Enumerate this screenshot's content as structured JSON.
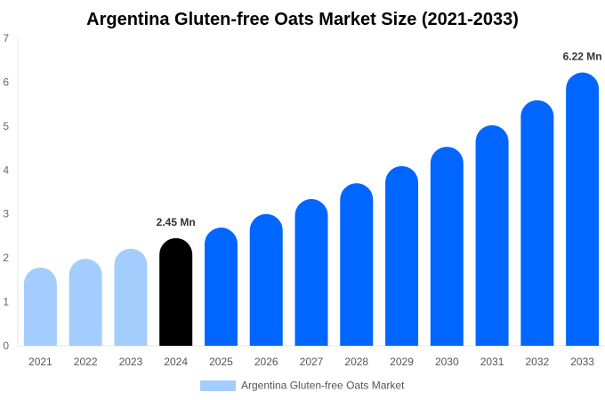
{
  "chart_data": {
    "type": "bar",
    "title": "Argentina Gluten-free Oats Market Size (2021-2033)",
    "xlabel": "",
    "ylabel": "",
    "ylim": [
      0,
      7
    ],
    "yticks": [
      "0",
      "1",
      "2",
      "3",
      "4",
      "5",
      "6",
      "7"
    ],
    "categories": [
      "2021",
      "2022",
      "2023",
      "2024",
      "2025",
      "2026",
      "2027",
      "2028",
      "2029",
      "2030",
      "2031",
      "2032",
      "2033"
    ],
    "series": [
      {
        "name": "Argentina Gluten-free Oats Market",
        "values": [
          1.78,
          1.98,
          2.21,
          2.45,
          2.69,
          3.0,
          3.34,
          3.7,
          4.09,
          4.53,
          5.02,
          5.59,
          6.22
        ]
      }
    ],
    "data_labels": [
      {
        "index": 3,
        "text": "2.45 Mn"
      },
      {
        "index": 12,
        "text": "6.22 Mn"
      }
    ],
    "colors": {
      "historical": "#a3cdfc",
      "base_year": "#000000",
      "forecast": "#0066ff"
    },
    "grid": false,
    "legend": "bottom-center"
  }
}
